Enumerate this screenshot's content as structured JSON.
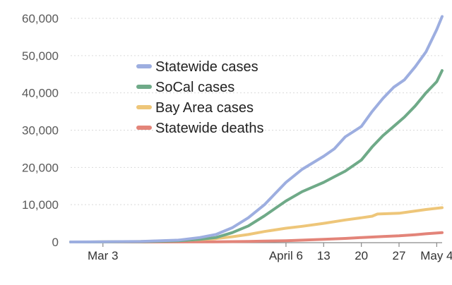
{
  "chart_data": {
    "type": "line",
    "title": "",
    "xlabel": "",
    "ylabel": "",
    "x_axis": {
      "type": "date",
      "range": [
        "2020-02-26",
        "2020-05-05"
      ],
      "ticks": [
        {
          "date": "2020-03-03",
          "label": "Mar 3"
        },
        {
          "date": "2020-04-06",
          "label": "April 6"
        },
        {
          "date": "2020-04-13",
          "label": "13"
        },
        {
          "date": "2020-04-20",
          "label": "20"
        },
        {
          "date": "2020-04-27",
          "label": "27"
        },
        {
          "date": "2020-05-04",
          "label": "May 4"
        }
      ]
    },
    "y_axis": {
      "range": [
        0,
        60000
      ],
      "ticks": [
        {
          "value": 0,
          "label": "0"
        },
        {
          "value": 10000,
          "label": "10,000"
        },
        {
          "value": 20000,
          "label": "20,000"
        },
        {
          "value": 30000,
          "label": "30,000"
        },
        {
          "value": 40000,
          "label": "40,000"
        },
        {
          "value": 50000,
          "label": "50,000"
        },
        {
          "value": 60000,
          "label": "60,000"
        }
      ]
    },
    "grid": true,
    "legend_position": "top-left",
    "series": [
      {
        "name": "Statewide cases",
        "color": "#9daee0",
        "points": [
          [
            "2020-02-26",
            0
          ],
          [
            "2020-03-03",
            30
          ],
          [
            "2020-03-10",
            140
          ],
          [
            "2020-03-17",
            500
          ],
          [
            "2020-03-21",
            1200
          ],
          [
            "2020-03-24",
            2000
          ],
          [
            "2020-03-27",
            3800
          ],
          [
            "2020-03-30",
            6500
          ],
          [
            "2020-04-02",
            10000
          ],
          [
            "2020-04-04",
            13000
          ],
          [
            "2020-04-06",
            16000
          ],
          [
            "2020-04-09",
            19500
          ],
          [
            "2020-04-13",
            23000
          ],
          [
            "2020-04-15",
            25000
          ],
          [
            "2020-04-17",
            28200
          ],
          [
            "2020-04-20",
            31000
          ],
          [
            "2020-04-22",
            35000
          ],
          [
            "2020-04-24",
            38500
          ],
          [
            "2020-04-26",
            41500
          ],
          [
            "2020-04-28",
            43500
          ],
          [
            "2020-04-30",
            47000
          ],
          [
            "2020-05-02",
            51000
          ],
          [
            "2020-05-04",
            57000
          ],
          [
            "2020-05-05",
            60500
          ]
        ]
      },
      {
        "name": "SoCal cases",
        "color": "#6faa88",
        "points": [
          [
            "2020-02-26",
            0
          ],
          [
            "2020-03-03",
            20
          ],
          [
            "2020-03-10",
            80
          ],
          [
            "2020-03-17",
            300
          ],
          [
            "2020-03-21",
            700
          ],
          [
            "2020-03-24",
            1200
          ],
          [
            "2020-03-27",
            2500
          ],
          [
            "2020-03-30",
            4300
          ],
          [
            "2020-04-02",
            7000
          ],
          [
            "2020-04-04",
            9000
          ],
          [
            "2020-04-06",
            11000
          ],
          [
            "2020-04-09",
            13500
          ],
          [
            "2020-04-13",
            16000
          ],
          [
            "2020-04-15",
            17500
          ],
          [
            "2020-04-17",
            19000
          ],
          [
            "2020-04-20",
            22000
          ],
          [
            "2020-04-22",
            25500
          ],
          [
            "2020-04-24",
            28500
          ],
          [
            "2020-04-26",
            31000
          ],
          [
            "2020-04-28",
            33500
          ],
          [
            "2020-04-30",
            36500
          ],
          [
            "2020-05-02",
            40000
          ],
          [
            "2020-05-04",
            43000
          ],
          [
            "2020-05-05",
            46000
          ]
        ]
      },
      {
        "name": "Bay Area cases",
        "color": "#eec679",
        "points": [
          [
            "2020-02-26",
            0
          ],
          [
            "2020-03-03",
            20
          ],
          [
            "2020-03-10",
            120
          ],
          [
            "2020-03-17",
            400
          ],
          [
            "2020-03-21",
            650
          ],
          [
            "2020-03-24",
            900
          ],
          [
            "2020-03-27",
            1400
          ],
          [
            "2020-03-30",
            2000
          ],
          [
            "2020-04-02",
            2800
          ],
          [
            "2020-04-06",
            3700
          ],
          [
            "2020-04-09",
            4200
          ],
          [
            "2020-04-13",
            5000
          ],
          [
            "2020-04-17",
            5900
          ],
          [
            "2020-04-20",
            6500
          ],
          [
            "2020-04-22",
            6900
          ],
          [
            "2020-04-23",
            7500
          ],
          [
            "2020-04-27",
            7700
          ],
          [
            "2020-04-30",
            8300
          ],
          [
            "2020-05-02",
            8700
          ],
          [
            "2020-05-05",
            9200
          ]
        ]
      },
      {
        "name": "Statewide deaths",
        "color": "#e38479",
        "points": [
          [
            "2020-02-26",
            0
          ],
          [
            "2020-03-10",
            5
          ],
          [
            "2020-03-17",
            20
          ],
          [
            "2020-03-24",
            60
          ],
          [
            "2020-03-30",
            150
          ],
          [
            "2020-04-02",
            250
          ],
          [
            "2020-04-06",
            350
          ],
          [
            "2020-04-10",
            550
          ],
          [
            "2020-04-13",
            700
          ],
          [
            "2020-04-17",
            950
          ],
          [
            "2020-04-20",
            1200
          ],
          [
            "2020-04-24",
            1450
          ],
          [
            "2020-04-27",
            1650
          ],
          [
            "2020-04-30",
            1950
          ],
          [
            "2020-05-02",
            2200
          ],
          [
            "2020-05-05",
            2500
          ]
        ]
      }
    ]
  }
}
